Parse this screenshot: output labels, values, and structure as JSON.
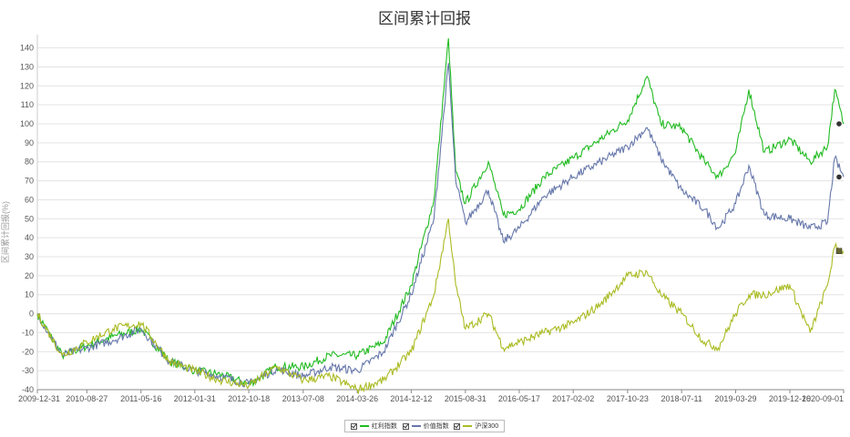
{
  "chart_data": {
    "type": "line",
    "title": "区间累计回报",
    "ylabel": "区间累计回报(%)",
    "xlabel": "",
    "ylim": [
      -40,
      147
    ],
    "yticks": [
      -40,
      -30,
      -20,
      -10,
      0,
      10,
      20,
      30,
      40,
      50,
      60,
      70,
      80,
      90,
      100,
      110,
      120,
      130,
      140
    ],
    "x_ticks": [
      "2009-12-31",
      "2010-08-27",
      "2011-05-16",
      "2012-01-31",
      "2012-10-18",
      "2013-07-08",
      "2014-03-26",
      "2014-12-12",
      "2015-08-31",
      "2016-05-17",
      "2017-02-02",
      "2017-10-23",
      "2018-07-11",
      "2019-03-29",
      "2019-12-16",
      "2020-09-01"
    ],
    "grid": "horizontal",
    "legend_position": "bottom",
    "series": [
      {
        "name": "红利指数",
        "color": "#22bb22",
        "x": [
          "2009-12-31",
          "2010-04-30",
          "2010-08-27",
          "2010-12-31",
          "2011-05-16",
          "2011-09-30",
          "2012-01-31",
          "2012-06-01",
          "2012-10-18",
          "2013-02-28",
          "2013-07-08",
          "2013-11-15",
          "2014-03-26",
          "2014-08-01",
          "2014-12-12",
          "2015-04-01",
          "2015-06-10",
          "2015-07-15",
          "2015-08-31",
          "2015-12-20",
          "2016-03-01",
          "2016-05-17",
          "2016-09-15",
          "2017-02-02",
          "2017-06-15",
          "2017-10-23",
          "2018-01-25",
          "2018-04-01",
          "2018-07-11",
          "2018-10-30",
          "2019-01-04",
          "2019-03-29",
          "2019-06-01",
          "2019-08-15",
          "2019-12-16",
          "2020-03-23",
          "2020-06-15",
          "2020-07-20",
          "2020-09-01"
        ],
        "values": [
          0,
          -22,
          -17,
          -12,
          -8,
          -25,
          -30,
          -32,
          -37,
          -28,
          -28,
          -22,
          -22,
          -15,
          15,
          60,
          145,
          75,
          58,
          80,
          52,
          55,
          72,
          82,
          92,
          102,
          125,
          100,
          98,
          80,
          72,
          85,
          118,
          85,
          92,
          80,
          88,
          118,
          100
        ]
      },
      {
        "name": "价值指数",
        "color": "#6677aa",
        "x": [
          "2009-12-31",
          "2010-04-30",
          "2010-08-27",
          "2010-12-31",
          "2011-05-16",
          "2011-09-30",
          "2012-01-31",
          "2012-06-01",
          "2012-10-18",
          "2013-02-28",
          "2013-07-08",
          "2013-11-15",
          "2014-03-26",
          "2014-08-01",
          "2014-12-12",
          "2015-04-01",
          "2015-06-10",
          "2015-07-15",
          "2015-08-31",
          "2015-12-20",
          "2016-03-01",
          "2016-05-17",
          "2016-09-15",
          "2017-02-02",
          "2017-06-15",
          "2017-10-23",
          "2018-01-25",
          "2018-04-01",
          "2018-07-11",
          "2018-10-30",
          "2019-01-04",
          "2019-03-29",
          "2019-06-01",
          "2019-08-15",
          "2019-12-16",
          "2020-03-23",
          "2020-06-15",
          "2020-07-20",
          "2020-09-01"
        ],
        "values": [
          0,
          -22,
          -18,
          -14,
          -8,
          -25,
          -30,
          -33,
          -37,
          -29,
          -33,
          -28,
          -30,
          -20,
          10,
          50,
          132,
          70,
          48,
          65,
          38,
          45,
          62,
          72,
          80,
          88,
          98,
          82,
          65,
          55,
          45,
          58,
          78,
          52,
          50,
          45,
          48,
          82,
          72
        ]
      },
      {
        "name": "沪深300",
        "color": "#aabb22",
        "x": [
          "2009-12-31",
          "2010-04-30",
          "2010-08-27",
          "2010-12-31",
          "2011-05-16",
          "2011-09-30",
          "2012-01-31",
          "2012-06-01",
          "2012-10-18",
          "2013-02-28",
          "2013-07-08",
          "2013-11-15",
          "2014-03-26",
          "2014-08-01",
          "2014-12-12",
          "2015-04-01",
          "2015-06-10",
          "2015-07-15",
          "2015-08-31",
          "2015-12-20",
          "2016-03-01",
          "2016-05-17",
          "2016-09-15",
          "2017-02-02",
          "2017-06-15",
          "2017-10-23",
          "2018-01-25",
          "2018-04-01",
          "2018-07-11",
          "2018-10-30",
          "2019-01-04",
          "2019-03-29",
          "2019-06-01",
          "2019-08-15",
          "2019-12-16",
          "2020-03-23",
          "2020-06-15",
          "2020-07-20",
          "2020-09-01"
        ],
        "values": [
          0,
          -22,
          -15,
          -8,
          -5,
          -25,
          -30,
          -35,
          -38,
          -28,
          -35,
          -33,
          -40,
          -35,
          -20,
          10,
          50,
          15,
          -8,
          0,
          -18,
          -15,
          -10,
          -5,
          5,
          20,
          22,
          10,
          0,
          -15,
          -18,
          0,
          10,
          10,
          15,
          -10,
          15,
          35,
          33
        ]
      }
    ]
  },
  "legend": {
    "items": [
      "红利指数",
      "价值指数",
      "沪深300"
    ]
  }
}
